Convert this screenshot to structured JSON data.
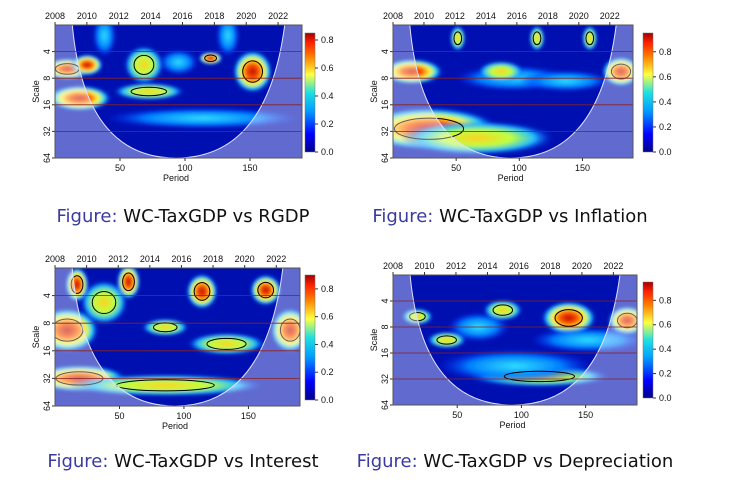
{
  "chart_data": [
    {
      "type": "heatmap",
      "title": "Figure: WC-TaxGDP vs RGDP",
      "caption_prefix": "Figure:",
      "caption_text": "WC-TaxGDP vs RGDP",
      "xlabel": "Period",
      "ylabel": "Scale",
      "x_ticks": [
        "50",
        "100",
        "150"
      ],
      "top_ticks": [
        "2008",
        "2010",
        "2012",
        "2014",
        "2016",
        "2018",
        "2020",
        "2022"
      ],
      "y_ticks": [
        "4",
        "8",
        "16",
        "32",
        "64"
      ],
      "colorbar_ticks": [
        "0.0",
        "0.2",
        "0.4",
        "0.6",
        "0.8"
      ],
      "colorbar_range": [
        0,
        0.85
      ]
    },
    {
      "type": "heatmap",
      "title": "Figure: WC-TaxGDP vs Inflation",
      "caption_prefix": "Figure:",
      "caption_text": "WC-TaxGDP vs Inflation",
      "xlabel": "Period",
      "ylabel": "Scale",
      "x_ticks": [
        "50",
        "100",
        "150"
      ],
      "top_ticks": [
        "2008",
        "2010",
        "2012",
        "2014",
        "2016",
        "2018",
        "2020",
        "2022"
      ],
      "y_ticks": [
        "4",
        "8",
        "16",
        "32",
        "64"
      ],
      "colorbar_ticks": [
        "0.0",
        "0.2",
        "0.4",
        "0.6",
        "0.8"
      ],
      "colorbar_range": [
        0,
        0.95
      ]
    },
    {
      "type": "heatmap",
      "title": "Figure: WC-TaxGDP vs Interest",
      "caption_prefix": "Figure:",
      "caption_text": "WC-TaxGDP vs Interest",
      "xlabel": "Period",
      "ylabel": "Scale",
      "x_ticks": [
        "50",
        "100",
        "150"
      ],
      "top_ticks": [
        "2008",
        "2010",
        "2012",
        "2014",
        "2016",
        "2018",
        "2020",
        "2022"
      ],
      "y_ticks": [
        "4",
        "8",
        "16",
        "32",
        "64"
      ],
      "colorbar_ticks": [
        "0.0",
        "0.2",
        "0.4",
        "0.6",
        "0.8"
      ],
      "colorbar_range": [
        0,
        0.9
      ]
    },
    {
      "type": "heatmap",
      "title": "Figure: WC-TaxGDP vs Depreciation",
      "caption_prefix": "Figure:",
      "caption_text": "WC-TaxGDP vs Depreciation",
      "xlabel": "Period",
      "ylabel": "Scale",
      "x_ticks": [
        "50",
        "100",
        "150"
      ],
      "top_ticks": [
        "2008",
        "2010",
        "2012",
        "2014",
        "2016",
        "2018",
        "2020",
        "2022"
      ],
      "y_ticks": [
        "4",
        "8",
        "16",
        "32",
        "64"
      ],
      "colorbar_ticks": [
        "0.0",
        "0.2",
        "0.4",
        "0.6",
        "0.8"
      ],
      "colorbar_range": [
        0,
        0.95
      ]
    }
  ],
  "colors": {
    "caption_prefix": "#3a3aa0",
    "caption_text": "#111111",
    "low": "#00008b",
    "high": "#b30000"
  }
}
